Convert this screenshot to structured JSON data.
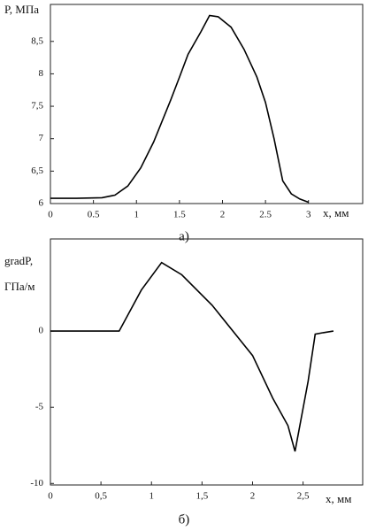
{
  "chart_data": [
    {
      "type": "line",
      "x_label": "x, мм",
      "y_label": "P, МПа",
      "caption": "а)",
      "x": [
        0,
        0.3,
        0.6,
        0.75,
        0.9,
        1.05,
        1.2,
        1.4,
        1.5,
        1.6,
        1.75,
        1.85,
        1.95,
        2.1,
        2.25,
        2.4,
        2.5,
        2.6,
        2.7,
        2.8,
        2.9,
        3
      ],
      "values": [
        6.08,
        6.08,
        6.09,
        6.13,
        6.27,
        6.55,
        6.95,
        7.6,
        7.95,
        8.3,
        8.65,
        8.9,
        8.88,
        8.72,
        8.38,
        7.95,
        7.56,
        7.0,
        6.35,
        6.15,
        6.07,
        6.02
      ],
      "color": "#000000",
      "xlim": [
        0,
        3.63
      ],
      "xticks": [
        0,
        0.5,
        1,
        1.5,
        2,
        2.5,
        3
      ],
      "ylim": [
        6,
        9.07
      ],
      "yticks": [
        6,
        {
          "value": 6.5,
          "label": "6,5"
        },
        7,
        {
          "value": 7.5,
          "label": "7,5"
        },
        8,
        {
          "value": 8.5,
          "label": "8,5"
        }
      ]
    },
    {
      "type": "line",
      "x_label": "x, мм",
      "y_label": [
        "gradP,",
        "ГПа/м"
      ],
      "caption": "б)",
      "x": [
        0,
        0.68,
        0.9,
        1.1,
        1.3,
        1.6,
        2.0,
        2.2,
        2.35,
        2.42,
        2.55,
        2.62,
        2.7,
        2.8
      ],
      "values": [
        0,
        0,
        2.7,
        4.5,
        3.7,
        1.7,
        -1.6,
        -4.4,
        -6.2,
        -7.9,
        -3.3,
        -0.2,
        -0.1,
        0
      ],
      "color": "#000000",
      "xlim": [
        0,
        3.09
      ],
      "xticks": [
        0,
        {
          "value": 0.5,
          "label": "0,5"
        },
        1,
        {
          "value": 1.5,
          "label": "1,5"
        },
        2,
        {
          "value": 2.5,
          "label": "2,5"
        }
      ],
      "ylim": [
        -10.1,
        6.05
      ],
      "yticks": [
        -10,
        -5,
        0
      ]
    }
  ]
}
